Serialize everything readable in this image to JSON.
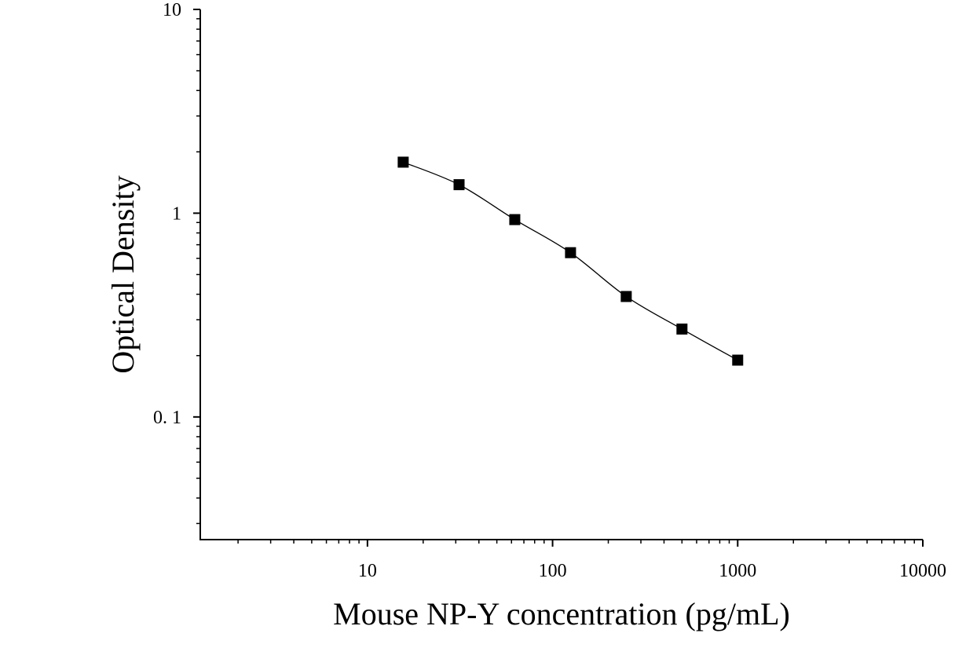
{
  "chart_data": {
    "type": "scatter",
    "title": "",
    "xlabel": "Mouse NP-Y concentration (pg/mL)",
    "ylabel": "Optical Density",
    "x_scale": "log",
    "y_scale": "log",
    "xlim": [
      1.25,
      10000
    ],
    "ylim": [
      0.025,
      10
    ],
    "x_ticks": [
      {
        "value": 10,
        "label": "10"
      },
      {
        "value": 100,
        "label": "100"
      },
      {
        "value": 1000,
        "label": "1000"
      },
      {
        "value": 10000,
        "label": "10000"
      }
    ],
    "y_ticks": [
      {
        "value": 0.1,
        "label": "0. 1"
      },
      {
        "value": 1,
        "label": "1"
      },
      {
        "value": 10,
        "label": "10"
      }
    ],
    "grid": false,
    "legend": "none",
    "marker": "square",
    "fit_curve": true,
    "color": "#000000",
    "series": [
      {
        "x": [
          15.6,
          31.25,
          62.5,
          125,
          250,
          500,
          1000
        ],
        "y": [
          1.78,
          1.38,
          0.93,
          0.64,
          0.39,
          0.27,
          0.19
        ]
      }
    ]
  }
}
